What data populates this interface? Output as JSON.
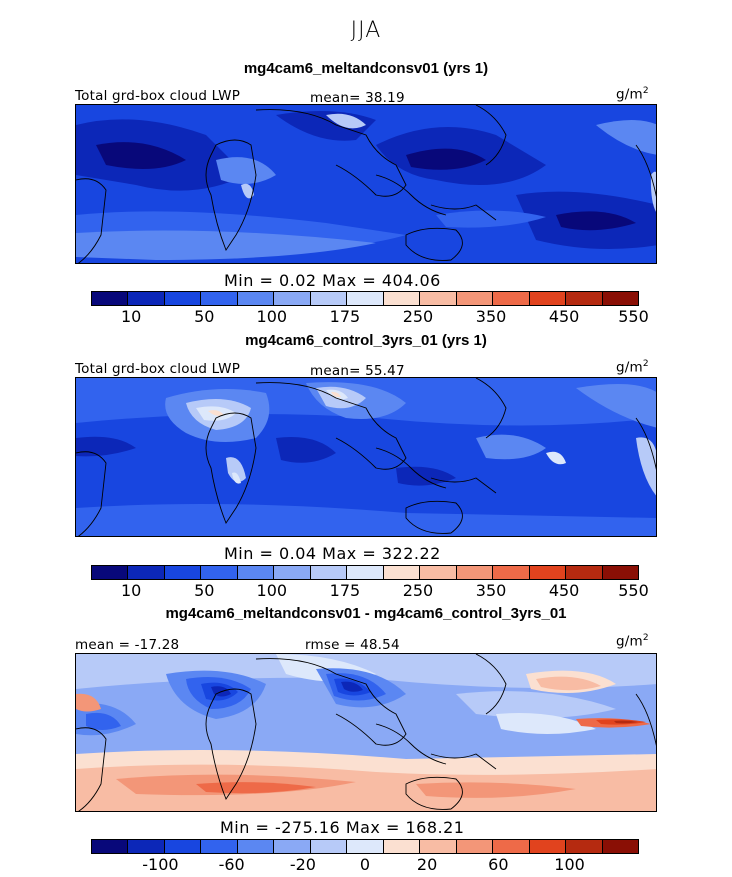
{
  "figure": {
    "season": "JJA"
  },
  "panels": [
    {
      "title": "mg4cam6_meltandconsv01 (yrs 1)",
      "variable_label": "Total grd-box cloud LWP",
      "stat_text": "mean=  38.19",
      "unit_base": "g/m",
      "unit_exp": "2",
      "minmax_text": "Min =    0.02 Max = 404.06",
      "colorbar_ticks": [
        "10",
        "50",
        "100",
        "175",
        "250",
        "350",
        "450",
        "550"
      ]
    },
    {
      "title": "mg4cam6_control_3yrs_01 (yrs 1)",
      "variable_label": "Total grd-box cloud LWP",
      "stat_text": "mean=  55.47",
      "unit_base": "g/m",
      "unit_exp": "2",
      "minmax_text": "Min =    0.04 Max = 322.22",
      "colorbar_ticks": [
        "10",
        "50",
        "100",
        "175",
        "250",
        "350",
        "450",
        "550"
      ]
    },
    {
      "title": "mg4cam6_meltandconsv01 - mg4cam6_control_3yrs_01",
      "mean_text": "mean = -17.28",
      "rmse_text": "rmse =  48.54",
      "unit_base": "g/m",
      "unit_exp": "2",
      "minmax_text": "Min = -275.16 Max = 168.21",
      "colorbar_ticks": [
        "-100",
        "-60",
        "-20",
        "0",
        "20",
        "60",
        "100"
      ]
    }
  ],
  "colors": {
    "absolute_scale": [
      "#08087a",
      "#0c27b8",
      "#1846e0",
      "#3263ee",
      "#5b87f2",
      "#8aa9f5",
      "#b7caf8",
      "#dde8fb",
      "#fbe0d1",
      "#f8bca4",
      "#f39678",
      "#ee6a48",
      "#e1431e",
      "#b52a10",
      "#8a0f05"
    ],
    "difference_scale": [
      "#08087a",
      "#0c27b8",
      "#1846e0",
      "#3263ee",
      "#5b87f2",
      "#8aa9f5",
      "#b7caf8",
      "#dde8fb",
      "#fbe0d1",
      "#f8bca4",
      "#f39678",
      "#ee6a48",
      "#e1431e",
      "#b52a10",
      "#8a0f05"
    ]
  }
}
